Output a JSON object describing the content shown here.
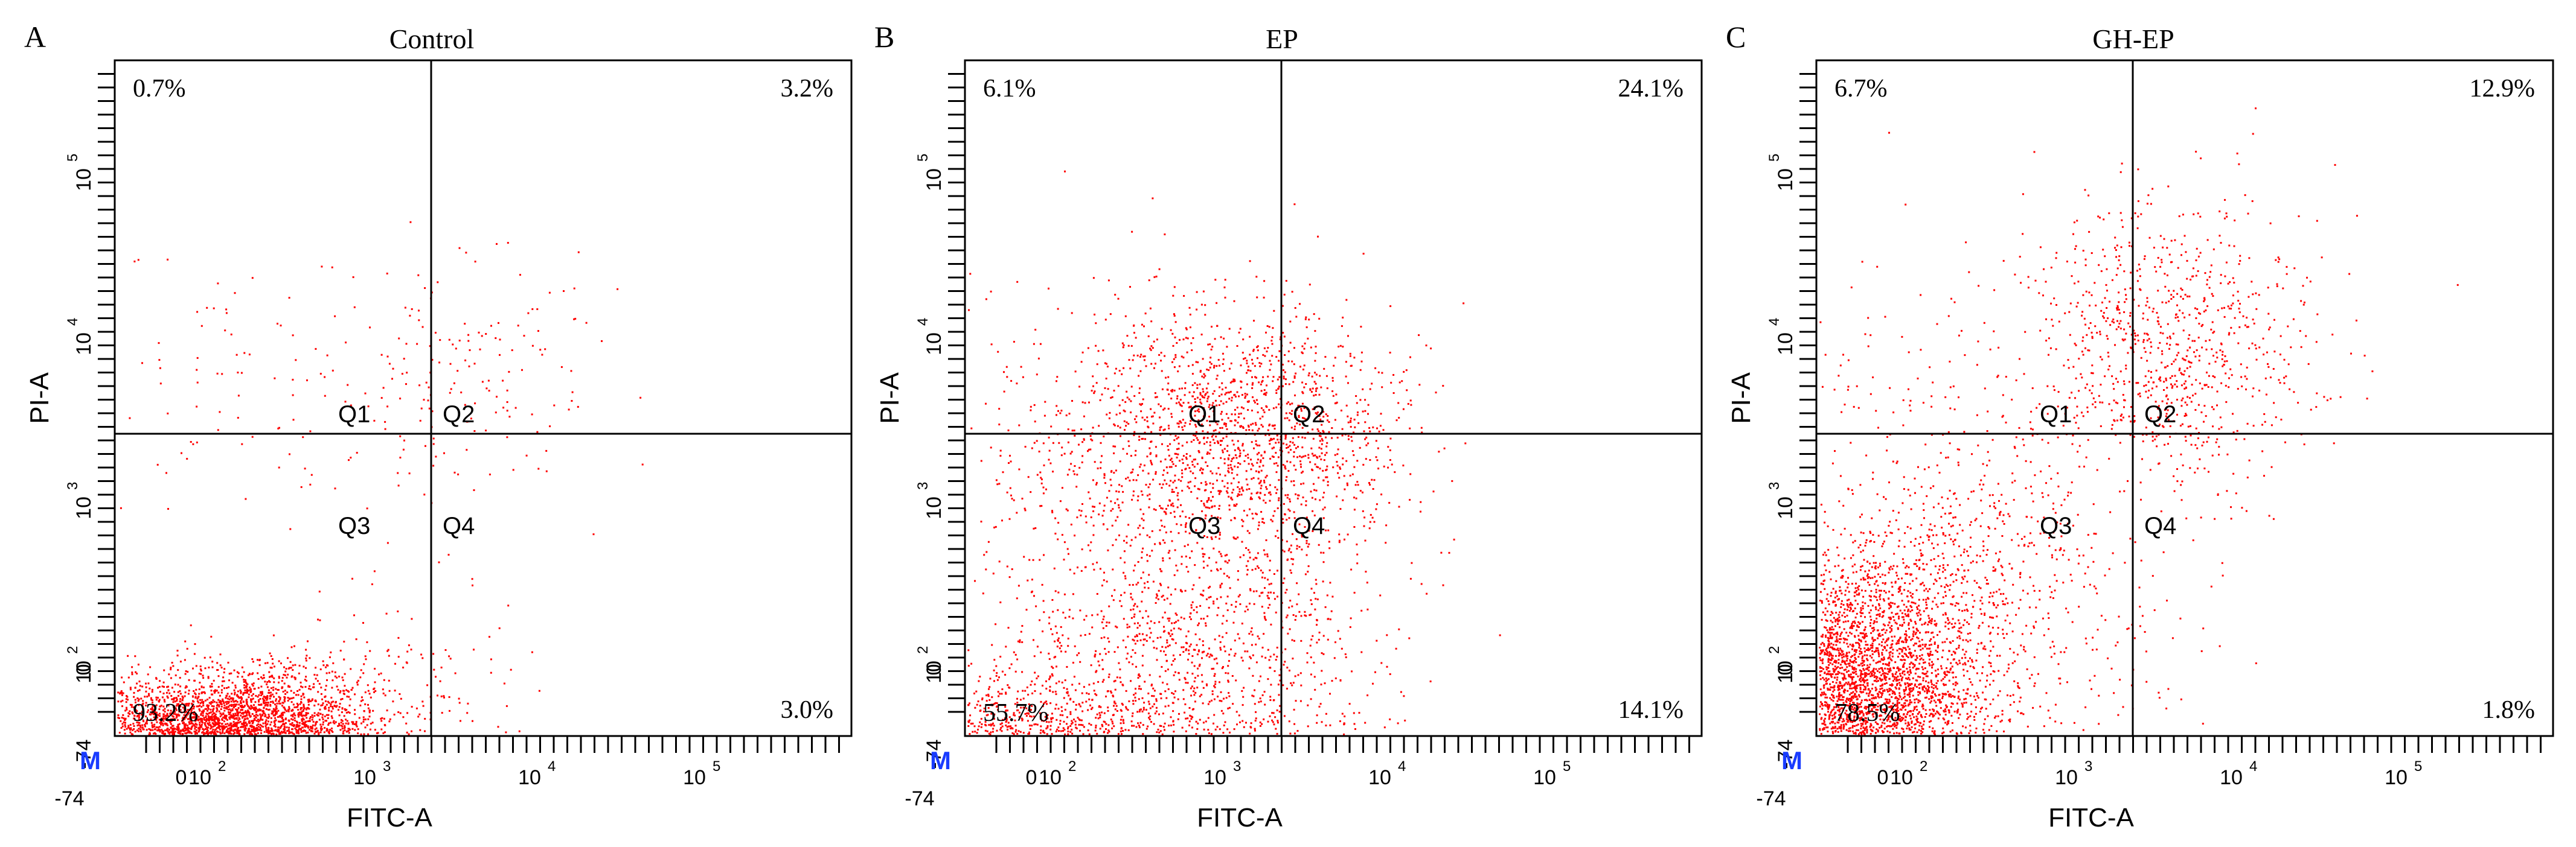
{
  "chart_data": [
    {
      "type": "scatter",
      "panel_label": "A",
      "title": "Control",
      "xlabel": "FITC-A",
      "ylabel": "PI-A",
      "x_ticks": [
        "-74",
        "0",
        "10",
        "10",
        "10",
        "10"
      ],
      "x_tick_exps": [
        "",
        "",
        "2",
        "3",
        "4",
        "5"
      ],
      "y_ticks": [
        "-74",
        "0",
        "10",
        "10",
        "10",
        "10"
      ],
      "y_tick_exps": [
        "",
        "",
        "2",
        "3",
        "4",
        "5"
      ],
      "marker": "M",
      "quadrant_labels": [
        "Q1",
        "Q2",
        "Q3",
        "Q4"
      ],
      "quadrant_percents": {
        "Q1": "0.7%",
        "Q2": "3.2%",
        "Q3": "93.2%",
        "Q4": "3.0%"
      },
      "point_color": "#ff0000",
      "populations": [
        {
          "x": 2.3,
          "y": 1.55,
          "sx": 0.42,
          "sy": 0.2,
          "fraction": 0.9
        },
        {
          "x": 1.0,
          "y": 1.4,
          "sx": 0.5,
          "sy": 0.28,
          "fraction": 0.03
        },
        {
          "x": 3.3,
          "y": 1.7,
          "sx": 0.45,
          "sy": 0.4,
          "fraction": 0.03
        },
        {
          "x": 3.6,
          "y": 3.8,
          "sx": 0.45,
          "sy": 0.35,
          "fraction": 0.03
        },
        {
          "x": 2.2,
          "y": 3.8,
          "sx": 0.4,
          "sy": 0.4,
          "fraction": 0.01
        }
      ]
    },
    {
      "type": "scatter",
      "panel_label": "B",
      "title": "EP",
      "xlabel": "FITC-A",
      "ylabel": "PI-A",
      "x_ticks": [
        "-74",
        "0",
        "10",
        "10",
        "10",
        "10"
      ],
      "x_tick_exps": [
        "",
        "",
        "2",
        "3",
        "4",
        "5"
      ],
      "y_ticks": [
        "-74",
        "0",
        "10",
        "10",
        "10",
        "10"
      ],
      "y_tick_exps": [
        "",
        "",
        "2",
        "3",
        "4",
        "5"
      ],
      "marker": "M",
      "quadrant_labels": [
        "Q1",
        "Q2",
        "Q3",
        "Q4"
      ],
      "quadrant_percents": {
        "Q1": "6.1%",
        "Q2": "24.1%",
        "Q3": "55.7%",
        "Q4": "14.1%"
      },
      "point_color": "#ff0000",
      "populations": [
        {
          "x": 1.9,
          "y": 1.35,
          "sx": 0.55,
          "sy": 0.28,
          "fraction": 0.5
        },
        {
          "x": 2.6,
          "y": 2.0,
          "sx": 0.5,
          "sy": 0.45,
          "fraction": 0.1
        },
        {
          "x": 3.3,
          "y": 3.4,
          "sx": 0.45,
          "sy": 0.4,
          "fraction": 0.24
        },
        {
          "x": 3.3,
          "y": 1.9,
          "sx": 0.45,
          "sy": 0.5,
          "fraction": 0.1
        },
        {
          "x": 2.4,
          "y": 3.3,
          "sx": 0.5,
          "sy": 0.5,
          "fraction": 0.06
        }
      ]
    },
    {
      "type": "scatter",
      "panel_label": "C",
      "title": "GH-EP",
      "xlabel": "FITC-A",
      "ylabel": "PI-A",
      "x_ticks": [
        "-74",
        "0",
        "10",
        "10",
        "10",
        "10"
      ],
      "x_tick_exps": [
        "",
        "",
        "2",
        "3",
        "4",
        "5"
      ],
      "y_ticks": [
        "-74",
        "0",
        "10",
        "10",
        "10",
        "10"
      ],
      "y_tick_exps": [
        "",
        "",
        "2",
        "3",
        "4",
        "5"
      ],
      "marker": "M",
      "quadrant_labels": [
        "Q1",
        "Q2",
        "Q3",
        "Q4"
      ],
      "quadrant_percents": {
        "Q1": "6.7%",
        "Q2": "12.9%",
        "Q3": "78.5%",
        "Q4": "1.8%"
      },
      "point_color": "#ff0000",
      "populations": [
        {
          "x": 1.8,
          "y": 1.85,
          "sx": 0.42,
          "sy": 0.42,
          "fraction": 0.76
        },
        {
          "x": 2.6,
          "y": 2.7,
          "sx": 0.35,
          "sy": 0.35,
          "fraction": 0.06
        },
        {
          "x": 3.7,
          "y": 4.0,
          "sx": 0.45,
          "sy": 0.45,
          "fraction": 0.14
        },
        {
          "x": 3.3,
          "y": 2.0,
          "sx": 0.4,
          "sy": 0.5,
          "fraction": 0.02
        },
        {
          "x": 2.2,
          "y": 3.6,
          "sx": 0.4,
          "sy": 0.5,
          "fraction": 0.02
        }
      ]
    }
  ]
}
